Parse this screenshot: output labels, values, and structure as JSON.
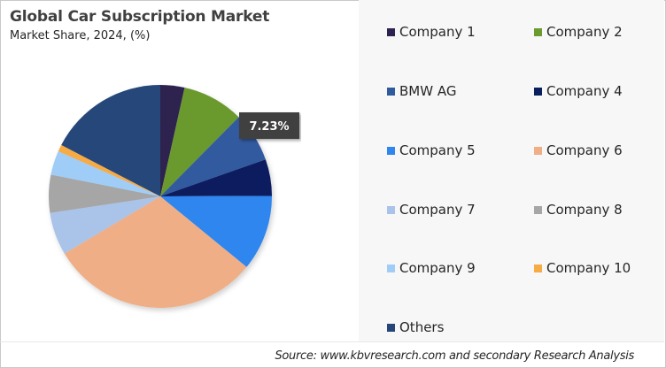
{
  "header": {
    "title": "Global Car Subscription Market",
    "subtitle": "Market Share, 2024, (%)"
  },
  "tooltip": {
    "label": "7.23%",
    "target": "BMW AG"
  },
  "legend": {
    "items": [
      {
        "label": "Company 1",
        "color": "#2e2250"
      },
      {
        "label": "Company 2",
        "color": "#6b9a2f"
      },
      {
        "label": "BMW AG",
        "color": "#305a9e"
      },
      {
        "label": "Company 4",
        "color": "#0a1f5e"
      },
      {
        "label": "Company 5",
        "color": "#2f86ee"
      },
      {
        "label": "Company 6",
        "color": "#f0ae86"
      },
      {
        "label": "Company 7",
        "color": "#aac3e8"
      },
      {
        "label": "Company 8",
        "color": "#a6a6a6"
      },
      {
        "label": "Company 9",
        "color": "#9fcdf8"
      },
      {
        "label": "Company 10",
        "color": "#f7ab45"
      },
      {
        "label": "Others",
        "color": "#254679"
      }
    ]
  },
  "footer": {
    "source": "Source: www.kbvresearch.com and secondary Research Analysis"
  },
  "chart_data": {
    "type": "pie",
    "title": "Global Car Subscription Market",
    "subtitle": "Market Share, 2024, (%)",
    "categories": [
      "Company 1",
      "Company 2",
      "BMW AG",
      "Company 4",
      "Company 5",
      "Company 6",
      "Company 7",
      "Company 8",
      "Company 9",
      "Company 10",
      "Others"
    ],
    "values": [
      3.5,
      8.9,
      7.23,
      5.3,
      11.0,
      30.5,
      6.2,
      5.5,
      3.5,
      1.0,
      17.37
    ],
    "labeled_values": {
      "BMW AG": 7.23
    },
    "start_angle_deg": 0,
    "direction": "clockwise",
    "legend_position": "right",
    "source": "Source: www.kbvresearch.com and secondary Research Analysis"
  }
}
